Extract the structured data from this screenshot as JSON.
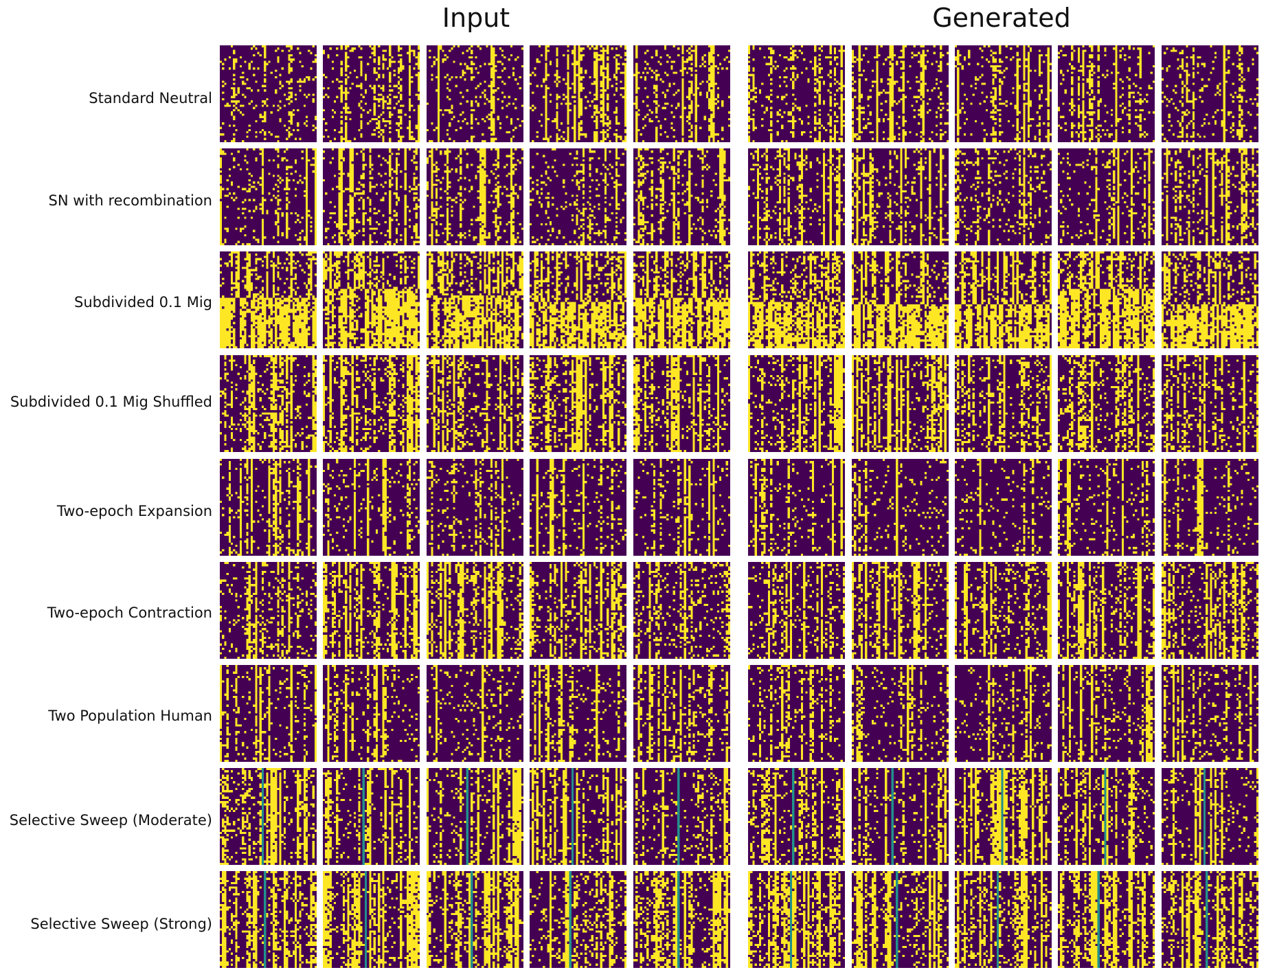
{
  "figure": {
    "groups": [
      "Input",
      "Generated"
    ],
    "panels_per_group": 5,
    "rows": [
      {
        "label": "Standard Neutral",
        "sweep": false,
        "density": 0.28,
        "vstripes": 0.18,
        "blocky": false
      },
      {
        "label": "SN with recombination",
        "sweep": false,
        "density": 0.3,
        "vstripes": 0.22,
        "blocky": false
      },
      {
        "label": "Subdivided 0.1 Mig",
        "sweep": false,
        "density": 0.4,
        "vstripes": 0.35,
        "blocky": true
      },
      {
        "label": "Subdivided 0.1 Mig Shuffled",
        "sweep": false,
        "density": 0.38,
        "vstripes": 0.3,
        "blocky": false
      },
      {
        "label": "Two-epoch Expansion",
        "sweep": false,
        "density": 0.22,
        "vstripes": 0.15,
        "blocky": false
      },
      {
        "label": "Two-epoch Contraction",
        "sweep": false,
        "density": 0.35,
        "vstripes": 0.3,
        "blocky": false
      },
      {
        "label": "Two Population Human",
        "sweep": false,
        "density": 0.25,
        "vstripes": 0.2,
        "blocky": false
      },
      {
        "label": "Selective Sweep (Moderate)",
        "sweep": true,
        "density": 0.3,
        "vstripes": 0.28,
        "blocky": false
      },
      {
        "label": "Selective Sweep (Strong)",
        "sweep": true,
        "density": 0.4,
        "vstripes": 0.4,
        "blocky": false
      }
    ],
    "colors": {
      "low": "#440154",
      "high": "#fde725",
      "sweep_line": "#21918c"
    }
  }
}
